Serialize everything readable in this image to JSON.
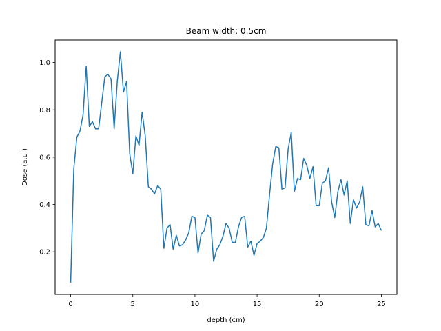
{
  "chart_data": {
    "type": "line",
    "title": "Beam width: 0.5cm",
    "xlabel": "depth (cm)",
    "ylabel": "Dose (a.u.)",
    "xlim": [
      -1.25,
      26.25
    ],
    "ylim": [
      0.02,
      1.095
    ],
    "xticks": [
      0,
      5,
      10,
      15,
      20,
      25
    ],
    "xtick_labels": [
      "0",
      "5",
      "10",
      "15",
      "20",
      "25"
    ],
    "yticks": [
      0.2,
      0.4,
      0.6,
      0.8,
      1.0
    ],
    "ytick_labels": [
      "0.2",
      "0.4",
      "0.6",
      "0.8",
      "1.0"
    ],
    "grid": false,
    "series": [
      {
        "color": "#1f77b4",
        "x": [
          0,
          0.25,
          0.5,
          0.75,
          1.0,
          1.25,
          1.5,
          1.75,
          2.0,
          2.25,
          2.5,
          2.75,
          3.0,
          3.25,
          3.5,
          3.75,
          4.0,
          4.25,
          4.5,
          4.75,
          5.0,
          5.25,
          5.5,
          5.75,
          6.0,
          6.25,
          6.5,
          6.75,
          7.0,
          7.25,
          7.5,
          7.75,
          8.0,
          8.25,
          8.5,
          8.75,
          9.0,
          9.25,
          9.5,
          9.75,
          10.0,
          10.25,
          10.5,
          10.75,
          11.0,
          11.25,
          11.5,
          11.75,
          12.0,
          12.25,
          12.5,
          12.75,
          13.0,
          13.25,
          13.5,
          13.75,
          14.0,
          14.25,
          14.5,
          14.75,
          15.0,
          15.25,
          15.5,
          15.75,
          16.0,
          16.25,
          16.5,
          16.75,
          17.0,
          17.25,
          17.5,
          17.75,
          18.0,
          18.25,
          18.5,
          18.75,
          19.0,
          19.25,
          19.5,
          19.75,
          20.0,
          20.25,
          20.5,
          20.75,
          21.0,
          21.25,
          21.5,
          21.75,
          22.0,
          22.25,
          22.5,
          22.75,
          23.0,
          23.25,
          23.5,
          23.75,
          24.0,
          24.25,
          24.5,
          24.75,
          25.0
        ],
        "values": [
          0.07,
          0.55,
          0.685,
          0.71,
          0.78,
          0.985,
          0.73,
          0.75,
          0.72,
          0.72,
          0.83,
          0.94,
          0.95,
          0.93,
          0.72,
          0.92,
          1.045,
          0.875,
          0.92,
          0.615,
          0.53,
          0.69,
          0.65,
          0.79,
          0.69,
          0.475,
          0.465,
          0.445,
          0.48,
          0.465,
          0.215,
          0.3,
          0.315,
          0.21,
          0.27,
          0.225,
          0.23,
          0.25,
          0.28,
          0.35,
          0.345,
          0.195,
          0.275,
          0.29,
          0.355,
          0.345,
          0.16,
          0.21,
          0.23,
          0.265,
          0.32,
          0.3,
          0.24,
          0.24,
          0.305,
          0.345,
          0.35,
          0.22,
          0.245,
          0.185,
          0.235,
          0.245,
          0.26,
          0.3,
          0.44,
          0.57,
          0.645,
          0.64,
          0.465,
          0.47,
          0.635,
          0.705,
          0.455,
          0.51,
          0.505,
          0.595,
          0.565,
          0.51,
          0.56,
          0.395,
          0.395,
          0.49,
          0.5,
          0.555,
          0.41,
          0.345,
          0.455,
          0.505,
          0.44,
          0.5,
          0.32,
          0.42,
          0.385,
          0.41,
          0.475,
          0.315,
          0.31,
          0.375,
          0.305,
          0.32,
          0.29
        ]
      }
    ]
  }
}
